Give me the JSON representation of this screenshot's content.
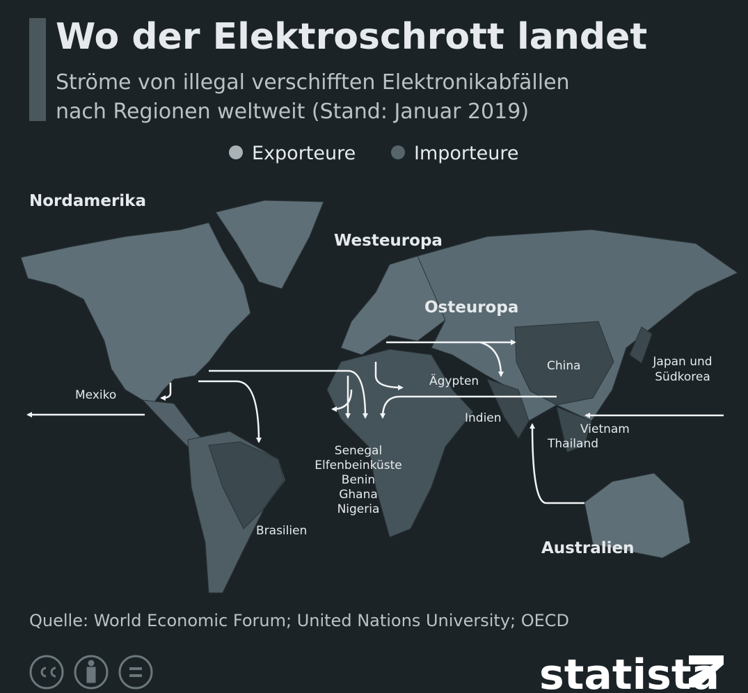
{
  "header": {
    "title": "Wo der Elektroschrott landet",
    "subtitle": [
      "Ströme von illegal verschifften Elektronikabfällen",
      "nach Regionen weltweit (Stand: Januar 2019)"
    ]
  },
  "legend": [
    "Exporteure",
    "Importeure"
  ],
  "map": {
    "regions": [
      "Nordamerika",
      "Westeuropa",
      "Osteuropa",
      "Australien"
    ],
    "countries": [
      [
        "Mexiko"
      ],
      [
        "China"
      ],
      [
        "Japan und",
        "Südkorea"
      ],
      [
        "Ägypten"
      ],
      [
        "Indien"
      ],
      [
        "Vietnam"
      ],
      [
        "Thailand"
      ],
      [
        "Senegal",
        "Elfenbeinküste",
        "Benin",
        "Ghana",
        "Nigeria"
      ],
      [
        "Brasilien"
      ]
    ]
  },
  "source": "Quelle: World Economic Forum; United Nations University; OECD",
  "logo": "statista"
}
